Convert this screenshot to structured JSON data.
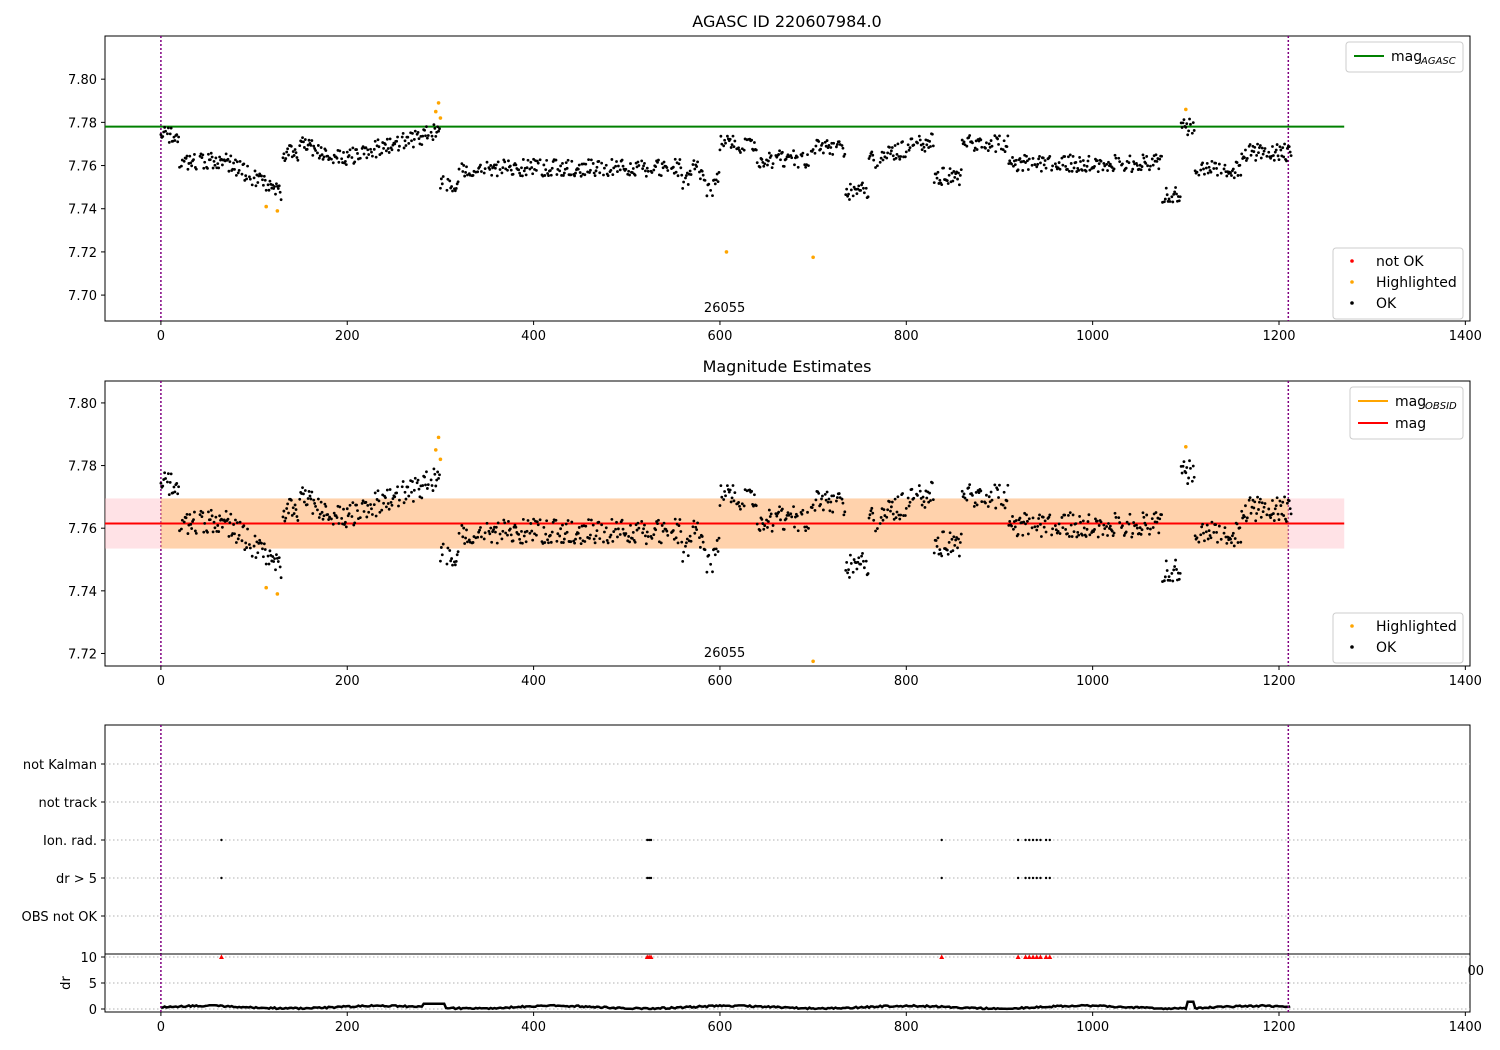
{
  "chart_data": [
    {
      "type": "scatter",
      "title": "AGASC ID 220607984.0",
      "xlim": [
        -60,
        1405
      ],
      "ylim": [
        7.688,
        7.82
      ],
      "xticks": [
        "0",
        "200",
        "400",
        "600",
        "800",
        "1000",
        "1200",
        "1400"
      ],
      "yticks": [
        "7.70",
        "7.72",
        "7.74",
        "7.76",
        "7.78",
        "7.80"
      ],
      "vlines": [
        0,
        1210
      ],
      "obsid_label": "26055",
      "hline": {
        "name": "mag_AGASC",
        "value": 7.778,
        "x_end": 1270,
        "color": "#008000"
      },
      "legend_lines": [
        {
          "label": "mag",
          "subscript": "AGASC",
          "color": "#008000"
        }
      ],
      "legend_points": [
        {
          "label": "not OK",
          "color": "#ff0000"
        },
        {
          "label": "Highlighted",
          "color": "#ffa500"
        },
        {
          "label": "OK",
          "color": "#000000"
        }
      ],
      "series": [
        {
          "name": "OK",
          "color": "#000000",
          "range": [
            0,
            1215
          ],
          "description": "~1200 points between 7.741 and 7.781"
        },
        {
          "name": "Highlighted",
          "color": "#ffa500",
          "points": [
            [
              113,
              7.741
            ],
            [
              125,
              7.739
            ],
            [
              295,
              7.785
            ],
            [
              298,
              7.789
            ],
            [
              300,
              7.782
            ],
            [
              607,
              7.72
            ],
            [
              700,
              7.7175
            ],
            [
              1100,
              7.786
            ]
          ]
        }
      ]
    },
    {
      "type": "scatter",
      "title": "Magnitude Estimates",
      "xlim": [
        -60,
        1405
      ],
      "ylim": [
        7.716,
        7.807
      ],
      "xticks": [
        "0",
        "200",
        "400",
        "600",
        "800",
        "1000",
        "1200",
        "1400"
      ],
      "yticks": [
        "7.72",
        "7.74",
        "7.76",
        "7.78",
        "7.80"
      ],
      "vlines": [
        0,
        1210
      ],
      "obsid_label": "26055",
      "mag": {
        "value": 7.7615,
        "x_end": 1270,
        "color": "#ff0000",
        "band": [
          7.7535,
          7.7695
        ]
      },
      "legend_lines": [
        {
          "label": "mag",
          "subscript": "OBSID",
          "color": "#ffa500"
        },
        {
          "label": "mag",
          "subscript": "",
          "color": "#ff0000"
        }
      ],
      "legend_points": [
        {
          "label": "Highlighted",
          "color": "#ffa500"
        },
        {
          "label": "OK",
          "color": "#000000"
        }
      ],
      "series": [
        {
          "name": "OK",
          "color": "#000000",
          "range": [
            0,
            1215
          ]
        },
        {
          "name": "Highlighted",
          "color": "#ffa500",
          "points": [
            [
              113,
              7.741
            ],
            [
              125,
              7.739
            ],
            [
              295,
              7.785
            ],
            [
              298,
              7.789
            ],
            [
              300,
              7.782
            ],
            [
              700,
              7.7175
            ],
            [
              1100,
              7.786
            ]
          ]
        }
      ]
    },
    {
      "type": "scatter",
      "title": "",
      "xlim": [
        -60,
        1405
      ],
      "vlines": [
        0,
        1210
      ],
      "flag_rows": [
        "not Kalman",
        "not track",
        "Ion. rad.",
        "dr > 5",
        "OBS not OK"
      ],
      "flags": {
        "Ion. rad.": [
          65,
          522,
          524,
          526,
          838,
          920,
          928,
          932,
          936,
          940,
          944,
          950,
          954
        ],
        "dr > 5": [
          65,
          522,
          524,
          526,
          838,
          920,
          928,
          932,
          936,
          940,
          944,
          950,
          954
        ]
      }
    },
    {
      "type": "line",
      "title": "",
      "ylabel": "dr",
      "xlim": [
        -60,
        1405
      ],
      "ylim": [
        0,
        10.5
      ],
      "xticks": [
        "0",
        "200",
        "400",
        "600",
        "800",
        "1000",
        "1200",
        "1400"
      ],
      "yticks": [
        "0",
        "5",
        "10"
      ],
      "vlines": [
        0,
        1210
      ],
      "dr_range": [
        0,
        1.2
      ],
      "dr_clipped_markers": [
        65,
        522,
        524,
        526,
        838,
        920,
        928,
        932,
        936,
        940,
        944,
        950,
        954
      ],
      "clipped_tick_fragment": "00"
    }
  ]
}
